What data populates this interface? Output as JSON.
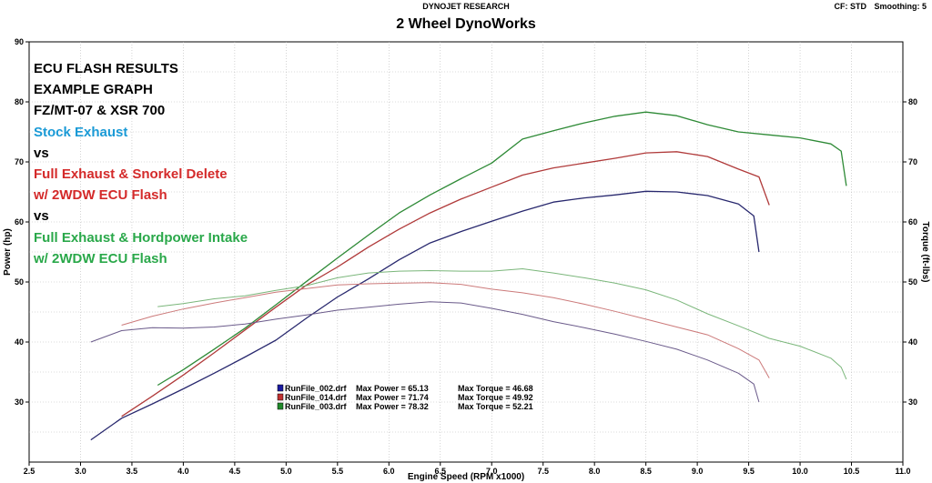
{
  "header": {
    "brand": "DYNOJET RESEARCH",
    "title": "2 Wheel DynoWorks",
    "cf": "CF: STD",
    "smoothing": "Smoothing: 5"
  },
  "annotations": [
    {
      "text": "ECU FLASH RESULTS",
      "color": "#000000"
    },
    {
      "text": "EXAMPLE GRAPH",
      "color": "#000000"
    },
    {
      "text": "FZ/MT-07 & XSR 700",
      "color": "#000000"
    },
    {
      "text": "Stock Exhaust",
      "color": "#1a9ad6"
    },
    {
      "text": "vs",
      "color": "#000000"
    },
    {
      "text": "Full Exhaust & Snorkel Delete",
      "color": "#d42a2a"
    },
    {
      "text": "w/ 2WDW ECU Flash",
      "color": "#d42a2a"
    },
    {
      "text": "vs",
      "color": "#000000"
    },
    {
      "text": "Full Exhaust & Hordpower Intake",
      "color": "#2aa84a"
    },
    {
      "text": "w/ 2WDW ECU Flash",
      "color": "#2aa84a"
    }
  ],
  "chart_data": {
    "type": "line",
    "xlabel": "Engine Speed (RPM x1000)",
    "ylabel": "Power (hp)",
    "y2label": "Torque (ft-lbs)",
    "xlim": [
      2.5,
      11.0
    ],
    "ylim": [
      20,
      90
    ],
    "y2lim": [
      20,
      90
    ],
    "x_ticks": [
      "2.5",
      "3.0",
      "3.5",
      "4.0",
      "4.5",
      "5.0",
      "5.5",
      "6.0",
      "6.5",
      "7.0",
      "7.5",
      "8.0",
      "8.5",
      "9.0",
      "9.5",
      "10.0",
      "10.5",
      "11.0"
    ],
    "y_ticks": [
      "30",
      "40",
      "50",
      "60",
      "70",
      "80",
      "90"
    ],
    "y2_ticks": [
      "30",
      "40",
      "50",
      "60",
      "70",
      "80"
    ],
    "grid": true,
    "legend": [
      {
        "swatch": "#1a1aa0",
        "file": "RunFile_002.drf",
        "power_label": "Max Power = 65.13",
        "torque_label": "Max Torque = 46.68"
      },
      {
        "swatch": "#c03030",
        "file": "RunFile_014.drf",
        "power_label": "Max Power = 71.74",
        "torque_label": "Max Torque = 49.92"
      },
      {
        "swatch": "#208a2a",
        "file": "RunFile_003.drf",
        "power_label": "Max Power = 78.32",
        "torque_label": "Max Torque = 52.21"
      }
    ],
    "series": [
      {
        "name": "RunFile_002.drf Power",
        "color": "#28286e",
        "kind": "power",
        "x": [
          3.1,
          3.4,
          3.7,
          4.0,
          4.3,
          4.6,
          4.9,
          5.2,
          5.5,
          5.8,
          6.1,
          6.4,
          6.7,
          7.0,
          7.3,
          7.6,
          7.9,
          8.2,
          8.5,
          8.8,
          9.1,
          9.4,
          9.55,
          9.6
        ],
        "y": [
          23.7,
          27.3,
          29.7,
          32.2,
          34.8,
          37.5,
          40.3,
          44.0,
          47.5,
          50.5,
          53.7,
          56.5,
          58.4,
          60.1,
          61.8,
          63.3,
          64.0,
          64.5,
          65.1,
          65.0,
          64.4,
          63.0,
          61.0,
          55.0
        ]
      },
      {
        "name": "RunFile_014.drf Power",
        "color": "#b03a3a",
        "kind": "power",
        "x": [
          3.4,
          3.7,
          4.0,
          4.3,
          4.6,
          4.9,
          5.2,
          5.5,
          5.8,
          6.1,
          6.4,
          6.7,
          7.0,
          7.3,
          7.6,
          7.9,
          8.2,
          8.5,
          8.8,
          9.1,
          9.4,
          9.6,
          9.7
        ],
        "y": [
          27.6,
          31.0,
          34.5,
          38.2,
          42.0,
          45.8,
          49.5,
          52.5,
          55.8,
          58.8,
          61.5,
          63.8,
          65.8,
          67.8,
          69.0,
          69.8,
          70.6,
          71.5,
          71.7,
          70.9,
          68.8,
          67.5,
          62.8
        ]
      },
      {
        "name": "RunFile_003.drf Power",
        "color": "#2e8a36",
        "kind": "power",
        "x": [
          3.75,
          4.0,
          4.3,
          4.6,
          4.9,
          5.2,
          5.5,
          5.8,
          6.1,
          6.4,
          6.7,
          7.0,
          7.3,
          7.6,
          7.9,
          8.2,
          8.5,
          8.8,
          9.1,
          9.4,
          9.7,
          10.0,
          10.3,
          10.4,
          10.45
        ],
        "y": [
          32.8,
          35.4,
          38.8,
          42.3,
          46.2,
          50.1,
          54.0,
          57.8,
          61.5,
          64.5,
          67.2,
          69.8,
          73.8,
          75.2,
          76.5,
          77.6,
          78.3,
          77.7,
          76.2,
          75.0,
          74.5,
          74.0,
          73.0,
          71.8,
          66.0
        ]
      },
      {
        "name": "RunFile_002.drf Torque",
        "color": "#6a5a8a",
        "kind": "torque",
        "x": [
          3.1,
          3.4,
          3.7,
          4.0,
          4.3,
          4.6,
          4.9,
          5.2,
          5.5,
          5.8,
          6.1,
          6.4,
          6.7,
          7.0,
          7.3,
          7.6,
          7.9,
          8.2,
          8.5,
          8.8,
          9.1,
          9.4,
          9.55,
          9.6
        ],
        "y": [
          40.0,
          41.9,
          42.4,
          42.3,
          42.5,
          43.0,
          43.8,
          44.5,
          45.3,
          45.8,
          46.3,
          46.7,
          46.5,
          45.6,
          44.6,
          43.4,
          42.4,
          41.3,
          40.1,
          38.8,
          37.0,
          34.8,
          33.0,
          30.0
        ]
      },
      {
        "name": "RunFile_014.drf Torque",
        "color": "#cc7a7a",
        "kind": "torque",
        "x": [
          3.4,
          3.7,
          4.0,
          4.3,
          4.6,
          4.9,
          5.2,
          5.5,
          5.8,
          6.1,
          6.4,
          6.7,
          7.0,
          7.3,
          7.6,
          7.9,
          8.2,
          8.5,
          8.8,
          9.1,
          9.4,
          9.6,
          9.7
        ],
        "y": [
          42.8,
          44.3,
          45.5,
          46.5,
          47.4,
          48.3,
          48.9,
          49.5,
          49.7,
          49.8,
          49.9,
          49.6,
          48.8,
          48.2,
          47.4,
          46.3,
          45.1,
          43.8,
          42.5,
          41.2,
          38.9,
          37.0,
          34.0
        ]
      },
      {
        "name": "RunFile_003.drf Torque",
        "color": "#7ab67a",
        "kind": "torque",
        "x": [
          3.75,
          4.0,
          4.3,
          4.6,
          4.9,
          5.2,
          5.5,
          5.8,
          6.1,
          6.4,
          6.7,
          7.0,
          7.3,
          7.6,
          7.9,
          8.2,
          8.5,
          8.8,
          9.1,
          9.4,
          9.7,
          10.0,
          10.3,
          10.4,
          10.45
        ],
        "y": [
          45.9,
          46.4,
          47.2,
          47.7,
          48.6,
          49.4,
          50.7,
          51.5,
          51.8,
          51.9,
          51.8,
          51.8,
          52.2,
          51.5,
          50.7,
          49.8,
          48.7,
          47.0,
          44.7,
          42.7,
          40.6,
          39.3,
          37.3,
          35.8,
          33.8
        ]
      }
    ]
  }
}
